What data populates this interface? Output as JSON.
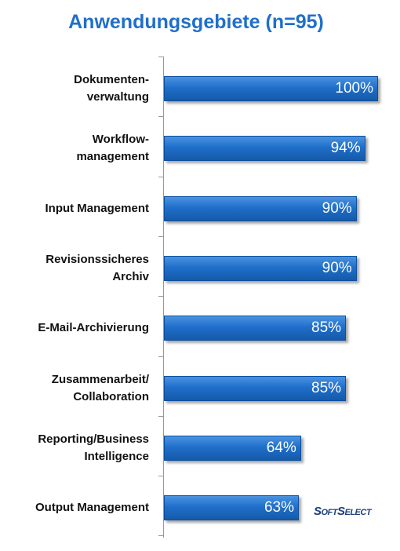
{
  "chart_data": {
    "type": "barh",
    "title": "Anwendungsgebiete (n=95)",
    "categories": [
      "Dokumenten-\nverwaltung",
      "Workflow-\nmanagement",
      "Input Management",
      "Revisionssicheres\nArchiv",
      "E-Mail-Archivierung",
      "Zusammenarbeit/\nCollaboration",
      "Reporting/Business\nIntelligence",
      "Output Management"
    ],
    "values": [
      100,
      94,
      90,
      90,
      85,
      85,
      64,
      63
    ],
    "value_labels": [
      "100%",
      "94%",
      "90%",
      "90%",
      "85%",
      "85%",
      "64%",
      "63%"
    ],
    "color": "#1f6fcb"
  },
  "logo": "SoftSelect"
}
